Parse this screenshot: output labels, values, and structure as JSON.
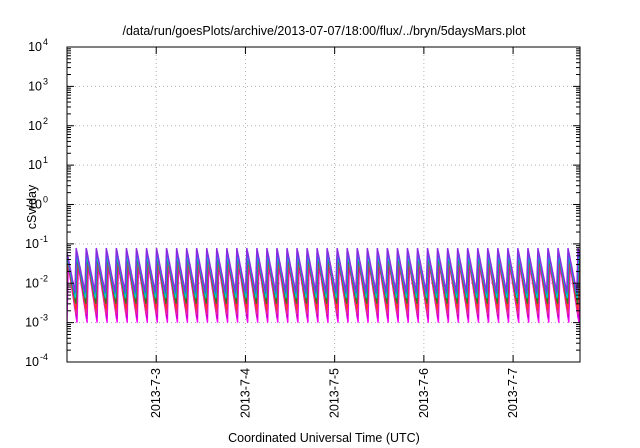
{
  "chart_data": {
    "type": "line",
    "title": "/data/run/goesPlots/archive/2013-07-07/18:00/flux/../bryn/5daysMars.plot",
    "xlabel": "Coordinated Universal Time (UTC)",
    "ylabel": "cSv/day",
    "x_ticks": [
      "2013-7-3",
      "2013-7-4",
      "2013-7-5",
      "2013-7-6",
      "2013-7-7"
    ],
    "xlim": [
      "2013-07-02T00:00",
      "2013-07-07T18:00"
    ],
    "yscale": "log",
    "ylim": [
      0.0001,
      10000
    ],
    "y_tick_exponents": [
      "-4",
      "-3",
      "-2",
      "-1",
      "0",
      "1",
      "2",
      "3",
      "4"
    ],
    "y_tick_base": "10",
    "grid": true,
    "oscillation_period_hours": 2.7,
    "series": [
      {
        "color": "#ff00ff",
        "peak": 0.03,
        "trough": 0.001
      },
      {
        "color": "#cc00cc",
        "peak": 0.035,
        "trough": 0.0012
      },
      {
        "color": "#e8308a",
        "peak": 0.04,
        "trough": 0.0015
      },
      {
        "color": "#ff3030",
        "peak": 0.045,
        "trough": 0.002
      },
      {
        "color": "#2a7a2a",
        "peak": 0.05,
        "trough": 0.003
      },
      {
        "color": "#00c8c8",
        "peak": 0.055,
        "trough": 0.004
      },
      {
        "color": "#2f6fe0",
        "peak": 0.07,
        "trough": 0.005
      },
      {
        "color": "#8a2be2",
        "peak": 0.08,
        "trough": 0.006
      }
    ]
  }
}
